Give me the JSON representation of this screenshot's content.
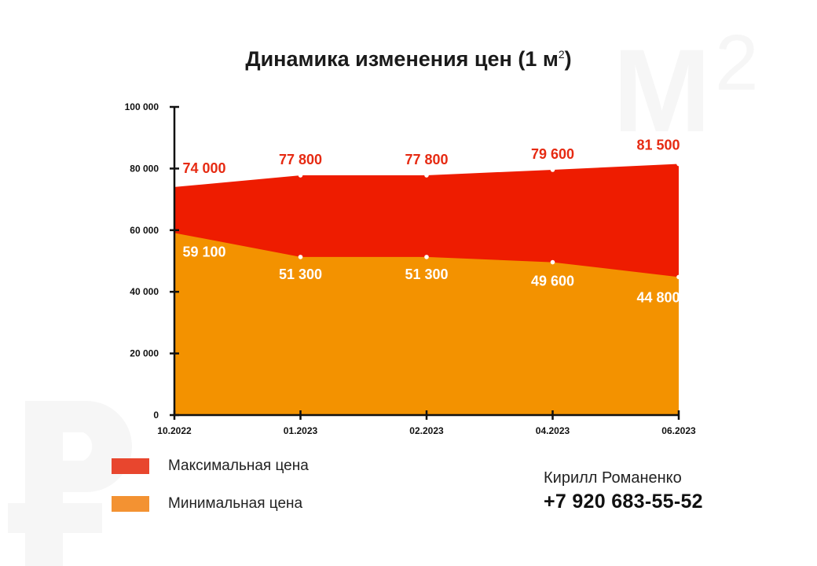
{
  "watermark": {
    "m": "М",
    "sup": "2"
  },
  "title": {
    "text": "Динамика изменения цен (1 м",
    "sup": "2",
    "close": ")"
  },
  "chart_data": {
    "type": "area",
    "categories": [
      "10.2022",
      "01.2023",
      "02.2023",
      "04.2023",
      "06.2023"
    ],
    "series": [
      {
        "name": "Максимальная цена",
        "values": [
          74000,
          77800,
          77800,
          79600,
          81500
        ],
        "labels": [
          "74 000",
          "77 800",
          "77 800",
          "79 600",
          "81 500"
        ],
        "color": "#ee1c00"
      },
      {
        "name": "Минимальная цена",
        "values": [
          59100,
          51300,
          51300,
          49600,
          44800
        ],
        "labels": [
          "59 100",
          "51 300",
          "51 300",
          "49 600",
          "44 800"
        ],
        "color": "#f39200"
      }
    ],
    "ylim": [
      0,
      100000
    ],
    "yticks": [
      0,
      20000,
      40000,
      60000,
      80000,
      100000
    ],
    "ytick_labels": [
      "0",
      "20 000",
      "40 000",
      "60 000",
      "80 000",
      "100 000"
    ],
    "xlabel": "",
    "ylabel": "",
    "grid": false,
    "legend": "bottom-left"
  },
  "legend": [
    {
      "label": "Максимальная цена",
      "color": "#e8462e"
    },
    {
      "label": "Минимальная цена",
      "color": "#f39232"
    }
  ],
  "contact": {
    "name": "Кирилл Романенко",
    "phone": "+7 920 683-55-52"
  }
}
